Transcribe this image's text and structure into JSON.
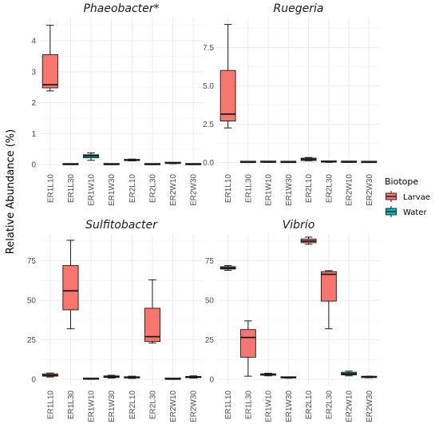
{
  "chart_data": {
    "type": "boxplot",
    "ylabel": "Relative Abundance (%)",
    "legend": {
      "title": "Biotope",
      "position": "right",
      "entries": [
        {
          "label": "Larvae",
          "color": "#F8766D"
        },
        {
          "label": "Water",
          "color": "#00BFC4"
        }
      ]
    },
    "categories": [
      "ER1L10",
      "ER1L30",
      "ER1W10",
      "ER1W30",
      "ER2L10",
      "ER2L30",
      "ER2W10",
      "ER2W30"
    ],
    "biotope": [
      "Larvae",
      "Larvae",
      "Water",
      "Water",
      "Larvae",
      "Larvae",
      "Water",
      "Water"
    ],
    "grid": true,
    "panels": [
      {
        "title": "Phaeobacter*",
        "ylim": [
          -0.15,
          4.75
        ],
        "yticks": [
          0,
          1,
          2,
          3,
          4
        ],
        "boxes": [
          {
            "min": 2.38,
            "q1": 2.48,
            "median": 2.58,
            "q3": 3.55,
            "max": 4.5
          },
          {
            "min": 0.0,
            "q1": 0.0,
            "median": 0.01,
            "q3": 0.02,
            "max": 0.03
          },
          {
            "min": 0.14,
            "q1": 0.22,
            "median": 0.28,
            "q3": 0.32,
            "max": 0.38
          },
          {
            "min": 0.0,
            "q1": 0.0,
            "median": 0.01,
            "q3": 0.02,
            "max": 0.03
          },
          {
            "min": 0.12,
            "q1": 0.13,
            "median": 0.15,
            "q3": 0.17,
            "max": 0.18
          },
          {
            "min": 0.0,
            "q1": 0.0,
            "median": 0.01,
            "q3": 0.02,
            "max": 0.03
          },
          {
            "min": 0.03,
            "q1": 0.04,
            "median": 0.05,
            "q3": 0.06,
            "max": 0.07
          },
          {
            "min": 0.0,
            "q1": 0.0,
            "median": 0.01,
            "q3": 0.02,
            "max": 0.03
          }
        ]
      },
      {
        "title": "Ruegeria",
        "ylim": [
          -0.45,
          9.45
        ],
        "yticks": [
          0.0,
          2.5,
          5.0,
          7.5
        ],
        "yticklabels": [
          "0.0",
          "2.5",
          "5.0",
          "7.5"
        ],
        "boxes": [
          {
            "min": 2.25,
            "q1": 2.7,
            "median": 3.15,
            "q3": 6.0,
            "max": 9.0
          },
          {
            "min": 0.0,
            "q1": 0.0,
            "median": 0.01,
            "q3": 0.02,
            "max": 0.03
          },
          {
            "min": 0.0,
            "q1": 0.01,
            "median": 0.02,
            "q3": 0.03,
            "max": 0.04
          },
          {
            "min": 0.0,
            "q1": 0.0,
            "median": 0.01,
            "q3": 0.02,
            "max": 0.03
          },
          {
            "min": 0.1,
            "q1": 0.12,
            "median": 0.2,
            "q3": 0.28,
            "max": 0.32
          },
          {
            "min": 0.0,
            "q1": 0.02,
            "median": 0.04,
            "q3": 0.06,
            "max": 0.08
          },
          {
            "min": 0.0,
            "q1": 0.01,
            "median": 0.02,
            "q3": 0.03,
            "max": 0.04
          },
          {
            "min": 0.0,
            "q1": 0.0,
            "median": 0.01,
            "q3": 0.02,
            "max": 0.03
          }
        ]
      },
      {
        "title": "Sulfitobacter",
        "ylim": [
          -4,
          92
        ],
        "yticks": [
          0,
          25,
          50,
          75
        ],
        "boxes": [
          {
            "min": 1.5,
            "q1": 2.0,
            "median": 2.6,
            "q3": 3.5,
            "max": 4.0
          },
          {
            "min": 32,
            "q1": 44,
            "median": 56,
            "q3": 72,
            "max": 88
          },
          {
            "min": 0.0,
            "q1": 0.1,
            "median": 0.3,
            "q3": 0.5,
            "max": 0.7
          },
          {
            "min": 0.8,
            "q1": 1.2,
            "median": 1.6,
            "q3": 2.2,
            "max": 2.6
          },
          {
            "min": 0.6,
            "q1": 0.9,
            "median": 1.2,
            "q3": 1.6,
            "max": 2.0
          },
          {
            "min": 23,
            "q1": 24,
            "median": 27,
            "q3": 45,
            "max": 63
          },
          {
            "min": 0.0,
            "q1": 0.1,
            "median": 0.2,
            "q3": 0.4,
            "max": 0.5
          },
          {
            "min": 0.8,
            "q1": 1.1,
            "median": 1.4,
            "q3": 1.8,
            "max": 2.2
          }
        ]
      },
      {
        "title": "Vibrio",
        "ylim": [
          -4,
          92
        ],
        "yticks": [
          0,
          25,
          50,
          75
        ],
        "boxes": [
          {
            "min": 69,
            "q1": 69.8,
            "median": 70.5,
            "q3": 71.3,
            "max": 72
          },
          {
            "min": 2,
            "q1": 14,
            "median": 26.5,
            "q3": 31.5,
            "max": 37
          },
          {
            "min": 2.2,
            "q1": 2.6,
            "median": 3.0,
            "q3": 3.5,
            "max": 3.9
          },
          {
            "min": 0.7,
            "q1": 0.9,
            "median": 1.1,
            "q3": 1.3,
            "max": 1.5
          },
          {
            "min": 85.5,
            "q1": 86.5,
            "median": 87.5,
            "q3": 88.8,
            "max": 90
          },
          {
            "min": 32,
            "q1": 49.5,
            "median": 66.5,
            "q3": 68.2,
            "max": 68.8
          },
          {
            "min": 2.2,
            "q1": 2.8,
            "median": 3.5,
            "q3": 4.5,
            "max": 5.2
          },
          {
            "min": 1.0,
            "q1": 1.2,
            "median": 1.4,
            "q3": 1.7,
            "max": 2.0
          }
        ]
      }
    ]
  }
}
